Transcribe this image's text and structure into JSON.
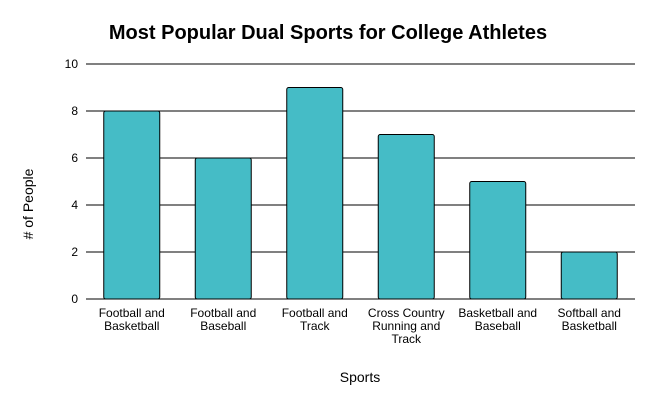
{
  "chart_data": {
    "type": "bar",
    "title": "Most Popular Dual Sports for College Athletes",
    "xlabel": "Sports",
    "ylabel": "# of People",
    "ylim": [
      0,
      10
    ],
    "yticks": [
      0,
      2,
      4,
      6,
      8,
      10
    ],
    "grid": true,
    "legend": "none",
    "categories": [
      [
        "Football and",
        "Basketball"
      ],
      [
        "Football and",
        "Baseball"
      ],
      [
        "Football and",
        "Track"
      ],
      [
        "Cross Country",
        "Running and",
        "Track"
      ],
      [
        "Basketball and",
        "Baseball"
      ],
      [
        "Softball and",
        "Basketball"
      ]
    ],
    "values": [
      8,
      6,
      9,
      7,
      5,
      2
    ],
    "colors": {
      "bar": "#45BCC6",
      "bar_outline": "#000000",
      "grid": "#000000",
      "text": "#000000"
    }
  }
}
